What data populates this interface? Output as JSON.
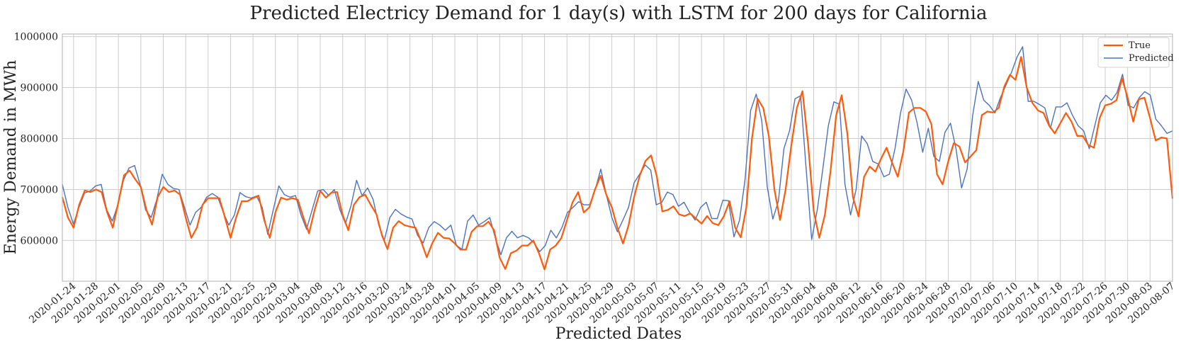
{
  "chart_data": {
    "type": "line",
    "title": "Predicted Electricy Demand for 1 day(s) with LSTM for 200 days for California",
    "xlabel": "Predicted Dates",
    "ylabel": "Energy Demand in MWh",
    "ylim": [
      520000,
      1005000
    ],
    "yticks": [
      600000,
      700000,
      800000,
      900000,
      1000000
    ],
    "ytick_labels": [
      "600000",
      "700000",
      "800000",
      "900000",
      "1000000"
    ],
    "x_start_date": "2020-01-22",
    "x_end_date": "2020-08-07",
    "xticks": [
      "2020-01-24",
      "2020-01-28",
      "2020-02-01",
      "2020-02-05",
      "2020-02-09",
      "2020-02-13",
      "2020-02-17",
      "2020-02-21",
      "2020-02-25",
      "2020-02-29",
      "2020-03-04",
      "2020-03-08",
      "2020-03-12",
      "2020-03-16",
      "2020-03-20",
      "2020-03-24",
      "2020-03-28",
      "2020-04-01",
      "2020-04-05",
      "2020-04-09",
      "2020-04-13",
      "2020-04-17",
      "2020-04-21",
      "2020-04-25",
      "2020-04-29",
      "2020-05-03",
      "2020-05-07",
      "2020-05-11",
      "2020-05-15",
      "2020-05-19",
      "2020-05-23",
      "2020-05-27",
      "2020-05-31",
      "2020-06-04",
      "2020-06-08",
      "2020-06-12",
      "2020-06-16",
      "2020-06-20",
      "2020-06-24",
      "2020-06-28",
      "2020-07-02",
      "2020-07-06",
      "2020-07-10",
      "2020-07-14",
      "2020-07-18",
      "2020-07-22",
      "2020-07-26",
      "2020-07-30",
      "2020-08-03",
      "2020-08-07"
    ],
    "legend_position": "top-right",
    "grid": true,
    "series": [
      {
        "name": "True",
        "color": "#ff5a0a",
        "values": [
          685000,
          645000,
          625000,
          670000,
          698000,
          695000,
          700000,
          695000,
          655000,
          625000,
          675000,
          728000,
          737000,
          720000,
          705000,
          660000,
          631000,
          685000,
          705000,
          695000,
          698000,
          690000,
          645000,
          605000,
          625000,
          670000,
          683000,
          683000,
          683000,
          645000,
          605000,
          645000,
          677000,
          677000,
          683000,
          688000,
          640000,
          605000,
          655000,
          684000,
          680000,
          683000,
          680000,
          645000,
          614000,
          660000,
          697000,
          684000,
          694000,
          695000,
          650000,
          620000,
          670000,
          685000,
          690000,
          670000,
          652000,
          610000,
          583000,
          625000,
          638000,
          630000,
          627000,
          625000,
          598000,
          567000,
          595000,
          615000,
          605000,
          604000,
          594000,
          582000,
          582000,
          617000,
          628000,
          628000,
          637000,
          620000,
          566000,
          544000,
          575000,
          580000,
          590000,
          590000,
          600000,
          575000,
          543000,
          582000,
          590000,
          605000,
          640000,
          675000,
          695000,
          655000,
          665000,
          700000,
          727000,
          690000,
          665000,
          625000,
          594000,
          630000,
          686000,
          728000,
          756000,
          767000,
          727000,
          657000,
          660000,
          667000,
          651000,
          648000,
          653000,
          643000,
          633000,
          648000,
          634000,
          630000,
          648000,
          677000,
          625000,
          606000,
          665000,
          800000,
          878000,
          860000,
          805000,
          700000,
          640000,
          700000,
          785000,
          860000,
          893000,
          790000,
          658000,
          605000,
          650000,
          735000,
          845000,
          885000,
          810000,
          685000,
          647000,
          725000,
          745000,
          735000,
          760000,
          782000,
          752000,
          725000,
          775000,
          851000,
          860000,
          860000,
          853000,
          828000,
          730000,
          710000,
          755000,
          791000,
          784000,
          753000,
          765000,
          777000,
          846000,
          853000,
          851000,
          860000,
          902000,
          925000,
          915000,
          960000,
          900000,
          870000,
          855000,
          850000,
          825000,
          810000,
          830000,
          850000,
          833000,
          805000,
          805000,
          787000,
          782000,
          840000,
          865000,
          868000,
          875000,
          918000,
          880000,
          833000,
          877000,
          880000,
          840000,
          796000,
          802000,
          800000,
          682000
        ]
      },
      {
        "name": "Predicted",
        "color": "#4a72c0",
        "values": [
          710000,
          665000,
          632000,
          665000,
          693000,
          697000,
          707000,
          710000,
          660000,
          638000,
          670000,
          718000,
          742000,
          747000,
          710000,
          660000,
          645000,
          680000,
          730000,
          710000,
          702000,
          700000,
          665000,
          630000,
          655000,
          665000,
          685000,
          692000,
          685000,
          655000,
          630000,
          650000,
          694000,
          686000,
          683000,
          687000,
          665000,
          612000,
          660000,
          707000,
          690000,
          685000,
          688000,
          650000,
          622000,
          660000,
          697000,
          700000,
          688000,
          700000,
          660000,
          633000,
          668000,
          718000,
          688000,
          703000,
          680000,
          630000,
          600000,
          645000,
          661000,
          652000,
          646000,
          642000,
          610000,
          595000,
          625000,
          637000,
          630000,
          620000,
          630000,
          590000,
          583000,
          638000,
          650000,
          630000,
          637000,
          645000,
          605000,
          572000,
          605000,
          618000,
          605000,
          610000,
          605000,
          595000,
          578000,
          590000,
          620000,
          605000,
          625000,
          655000,
          665000,
          676000,
          670000,
          670000,
          700000,
          740000,
          690000,
          645000,
          617000,
          640000,
          665000,
          713000,
          730000,
          748000,
          738000,
          670000,
          675000,
          695000,
          690000,
          667000,
          675000,
          655000,
          640000,
          665000,
          675000,
          643000,
          643000,
          679000,
          678000,
          607000,
          640000,
          720000,
          855000,
          887000,
          835000,
          705000,
          642000,
          677000,
          780000,
          815000,
          878000,
          884000,
          740000,
          602000,
          660000,
          740000,
          825000,
          872000,
          867000,
          710000,
          650000,
          700000,
          805000,
          790000,
          755000,
          750000,
          725000,
          730000,
          780000,
          850000,
          897000,
          875000,
          830000,
          773000,
          820000,
          765000,
          755000,
          812000,
          830000,
          780000,
          703000,
          740000,
          845000,
          912000,
          875000,
          865000,
          850000,
          880000,
          905000,
          930000,
          960000,
          980000,
          873000,
          873000,
          867000,
          860000,
          820000,
          862000,
          862000,
          870000,
          845000,
          825000,
          815000,
          780000,
          825000,
          870000,
          885000,
          875000,
          890000,
          926000,
          865000,
          860000,
          880000,
          892000,
          885000,
          838000,
          825000,
          810000,
          815000
        ]
      }
    ]
  }
}
